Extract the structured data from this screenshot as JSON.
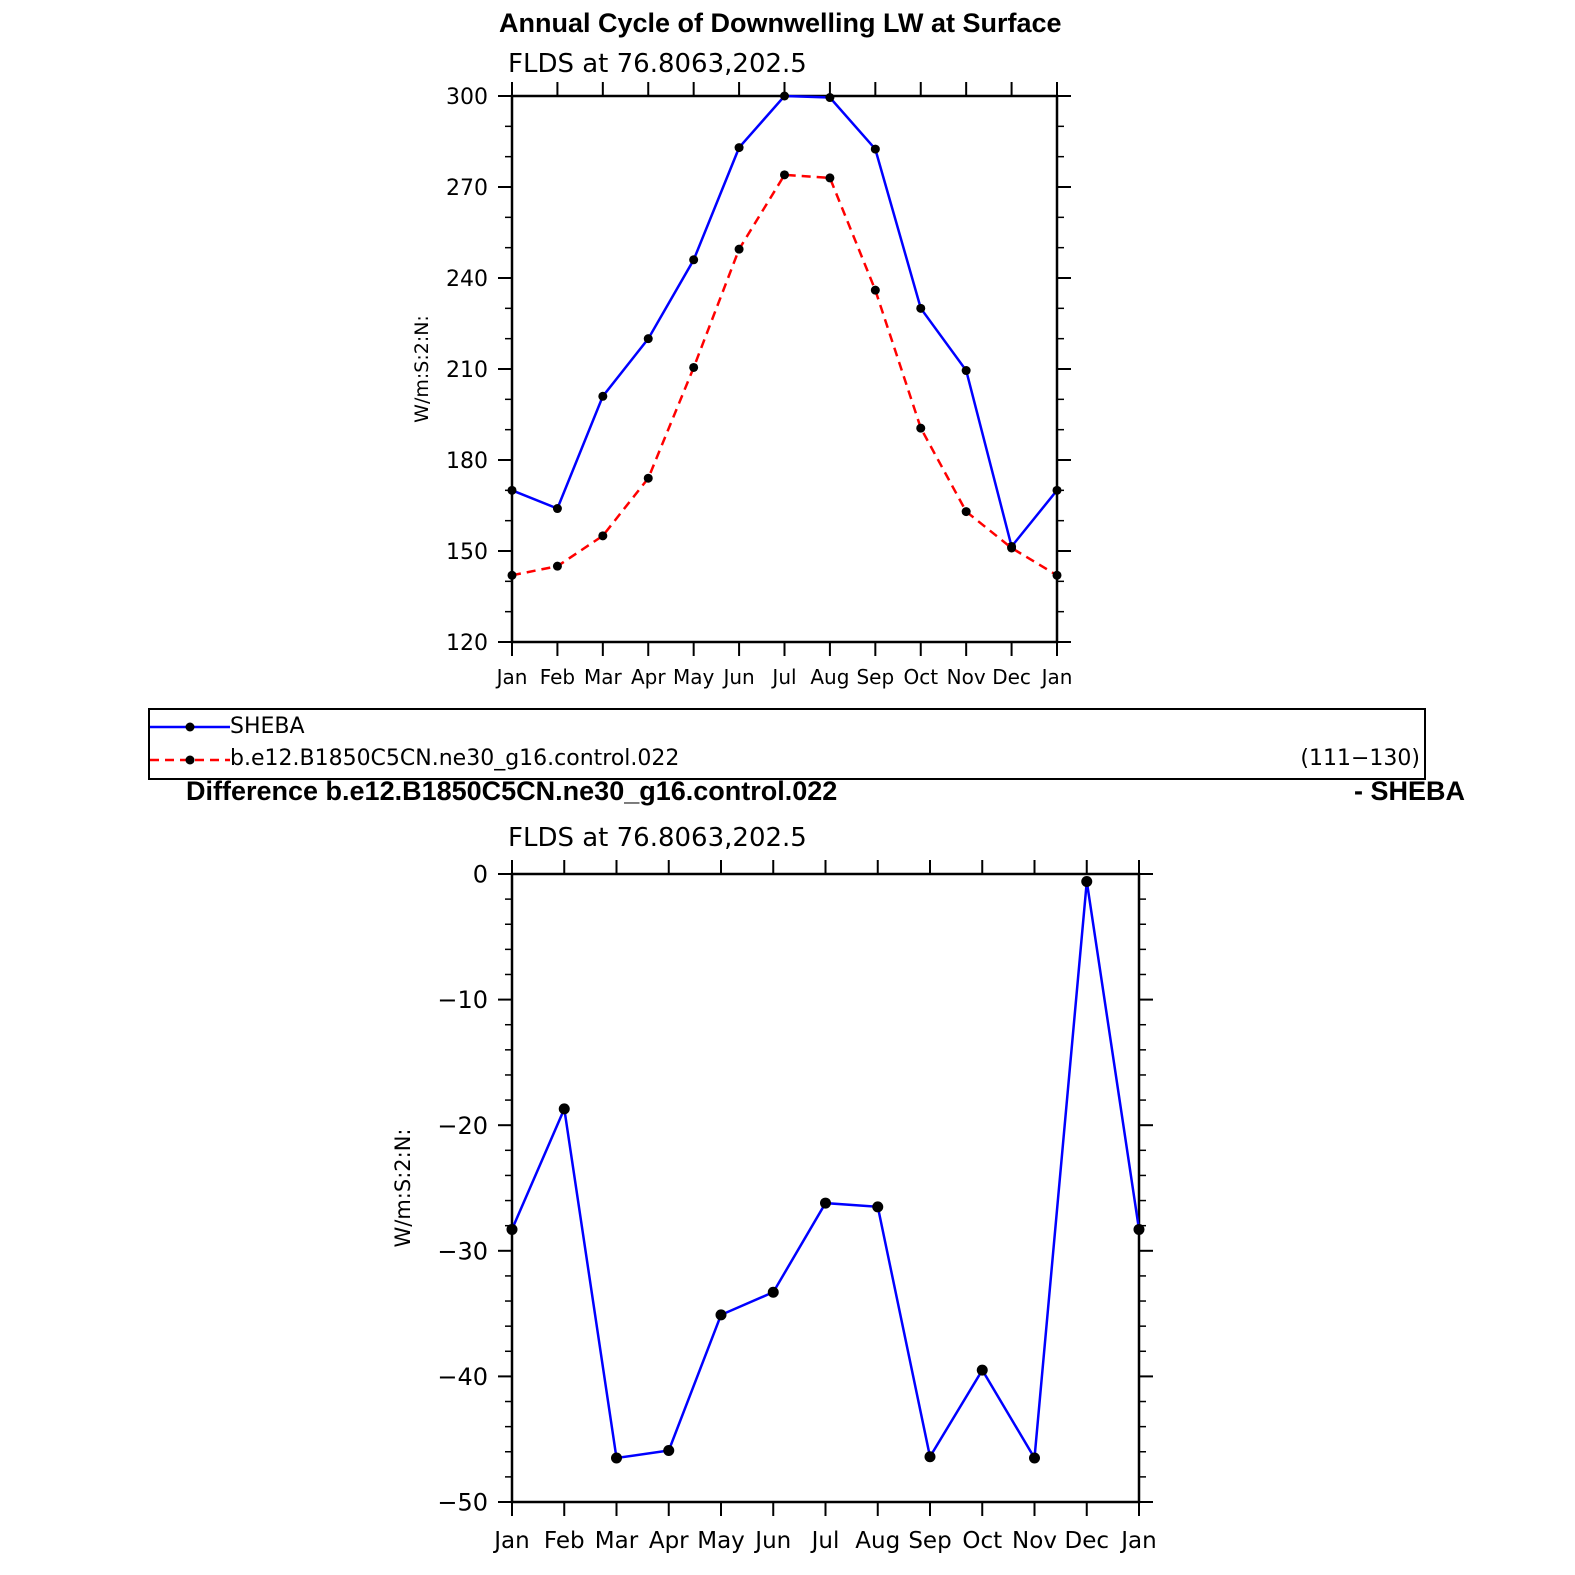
{
  "top": {
    "title": "Annual Cycle of Downwelling LW at Surface",
    "subtitle": "FLDS at 76.8063,202.5"
  },
  "bottom": {
    "title_left": "Difference b.e12.B1850C5CN.ne30_g16.control.022",
    "title_right": "- SHEBA",
    "subtitle": "FLDS at 76.8063,202.5"
  },
  "legend": {
    "entries": [
      {
        "label": "SHEBA",
        "color": "#0000ff",
        "style": "solid"
      },
      {
        "label": "b.e12.B1850C5CN.ne30_g16.control.022",
        "color": "#ff0000",
        "style": "dashed"
      }
    ],
    "note": "(111−130)"
  },
  "chart_data": [
    {
      "type": "line",
      "title": "Annual Cycle of Downwelling LW at Surface",
      "subtitle": "FLDS at 76.8063,202.5",
      "xlabel": "",
      "ylabel": "W/m:S:2:N:",
      "categories": [
        "Jan",
        "Feb",
        "Mar",
        "Apr",
        "May",
        "Jun",
        "Jul",
        "Aug",
        "Sep",
        "Oct",
        "Nov",
        "Dec",
        "Jan"
      ],
      "ylim": [
        120,
        300
      ],
      "yticks": [
        120,
        150,
        180,
        210,
        240,
        270,
        300
      ],
      "series": [
        {
          "name": "SHEBA",
          "color": "#0000ff",
          "dashed": false,
          "values": [
            170,
            164,
            201,
            220,
            246,
            283,
            300,
            299.5,
            282.5,
            230,
            209.5,
            151.5,
            170
          ]
        },
        {
          "name": "b.e12.B1850C5CN.ne30_g16.control.022",
          "color": "#ff0000",
          "dashed": true,
          "values": [
            142,
            145,
            155,
            174,
            210.5,
            249.5,
            274,
            273,
            236,
            190.5,
            163,
            151,
            142
          ]
        }
      ]
    },
    {
      "type": "line",
      "title": "Difference b.e12.B1850C5CN.ne30_g16.control.022 - SHEBA",
      "subtitle": "FLDS at 76.8063,202.5",
      "xlabel": "",
      "ylabel": "W/m:S:2:N:",
      "categories": [
        "Jan",
        "Feb",
        "Mar",
        "Apr",
        "May",
        "Jun",
        "Jul",
        "Aug",
        "Sep",
        "Oct",
        "Nov",
        "Dec",
        "Jan"
      ],
      "ylim": [
        -50,
        0
      ],
      "yticks": [
        -50,
        -40,
        -30,
        -20,
        -10,
        0
      ],
      "ytick_labels": [
        "−50",
        "−40",
        "−30",
        "−20",
        "−10",
        "0"
      ],
      "series": [
        {
          "color": "#0000ff",
          "dashed": false,
          "values": [
            -28.3,
            -18.7,
            -46.5,
            -45.9,
            -35.1,
            -33.3,
            -26.2,
            -26.5,
            -46.4,
            -39.5,
            -46.5,
            -0.6,
            -28.3
          ]
        }
      ]
    }
  ]
}
